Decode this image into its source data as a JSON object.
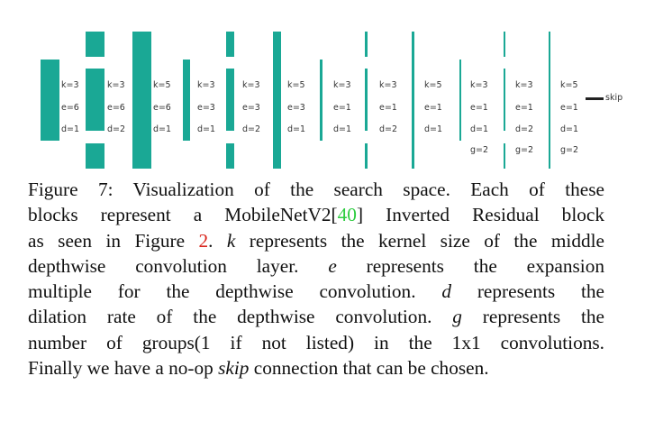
{
  "figure": {
    "blocks": [
      {
        "k": "k=3",
        "e": "e=6",
        "d": "d=1",
        "g": null
      },
      {
        "k": "k=3",
        "e": "e=6",
        "d": "d=2",
        "g": null
      },
      {
        "k": "k=5",
        "e": "e=6",
        "d": "d=1",
        "g": null
      },
      {
        "k": "k=3",
        "e": "e=3",
        "d": "d=1",
        "g": null
      },
      {
        "k": "k=3",
        "e": "e=3",
        "d": "d=2",
        "g": null
      },
      {
        "k": "k=5",
        "e": "e=3",
        "d": "d=1",
        "g": null
      },
      {
        "k": "k=3",
        "e": "e=1",
        "d": "d=1",
        "g": null
      },
      {
        "k": "k=3",
        "e": "e=1",
        "d": "d=2",
        "g": null
      },
      {
        "k": "k=5",
        "e": "e=1",
        "d": "d=1",
        "g": null
      },
      {
        "k": "k=3",
        "e": "e=1",
        "d": "d=1",
        "g": "g=2"
      },
      {
        "k": "k=3",
        "e": "e=1",
        "d": "d=2",
        "g": "g=2"
      },
      {
        "k": "k=5",
        "e": "e=1",
        "d": "d=1",
        "g": "g=2"
      }
    ],
    "skip_label": "skip",
    "color": "#1aa895"
  },
  "caption": {
    "label": "Figure 7:",
    "text_1": " Visualization of the search space. Each of these",
    "text_2": "blocks represent a MobileNetV2[",
    "ref_40": "40",
    "text_3": "] Inverted Residual block",
    "text_4": "as seen in Figure ",
    "ref_2": "2",
    "text_5": ". ",
    "k": "k",
    "text_6": " represents the kernel size of the middle",
    "text_7": "depthwise convolution layer. ",
    "e": "e",
    "text_8": " represents the expansion",
    "text_9": "multiple for the depthwise convolution. ",
    "d": "d",
    "text_10": " represents the",
    "text_11": "dilation rate of the depthwise convolution. ",
    "g": "g",
    "text_12": " represents the",
    "text_13": "number of groups(1 if not listed) in the 1x1 convolutions.",
    "text_14": "Finally we have a no-op ",
    "skip": "skip",
    "text_15": " connection that can be chosen."
  }
}
